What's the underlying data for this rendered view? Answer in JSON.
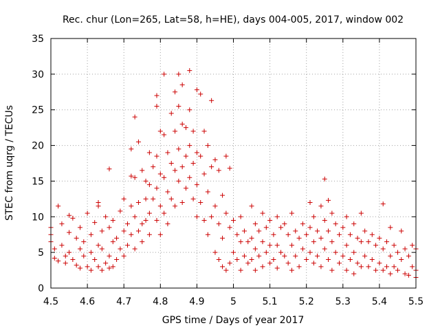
{
  "chart_data": {
    "type": "scatter",
    "title": "Rec. chur (Lon=265, Lat=58, h=HE), days 004-005, 2017, window 002",
    "xlabel": "GPS time / Days of year 2017",
    "ylabel": "STEC from uqrg / TECUs",
    "xlim": [
      4.5,
      5.5
    ],
    "ylim": [
      0,
      35
    ],
    "xticks": [
      4.5,
      4.6,
      4.7,
      4.8,
      4.9,
      5.0,
      5.1,
      5.2,
      5.3,
      5.4,
      5.5
    ],
    "xtick_labels": [
      "4.5",
      "4.6",
      "4.7",
      "4.8",
      "4.9",
      "5",
      "5.1",
      "5.2",
      "5.3",
      "5.4",
      "5.5"
    ],
    "yticks": [
      0,
      5,
      10,
      15,
      20,
      25,
      30,
      35
    ],
    "ytick_labels": [
      "0",
      "5",
      "10",
      "15",
      "20",
      "25",
      "30",
      "35"
    ],
    "grid": true,
    "marker": "plus",
    "color": "#cc0000",
    "series": [
      {
        "points": [
          [
            4.5,
            8.5
          ],
          [
            4.5,
            7.5
          ],
          [
            4.5,
            6.5
          ],
          [
            4.51,
            5.5
          ],
          [
            4.51,
            4.2
          ],
          [
            4.52,
            11.5
          ],
          [
            4.52,
            3.8
          ],
          [
            4.53,
            9.0
          ],
          [
            4.53,
            6.0
          ],
          [
            4.54,
            4.5
          ],
          [
            4.54,
            3.5
          ],
          [
            4.55,
            10.2
          ],
          [
            4.55,
            7.8
          ],
          [
            4.55,
            5.0
          ],
          [
            4.56,
            9.8
          ],
          [
            4.56,
            4.0
          ],
          [
            4.57,
            7.0
          ],
          [
            4.57,
            3.2
          ],
          [
            4.58,
            8.5
          ],
          [
            4.58,
            5.5
          ],
          [
            4.58,
            2.8
          ],
          [
            4.59,
            6.5
          ],
          [
            4.59,
            4.5
          ],
          [
            4.6,
            10.5
          ],
          [
            4.6,
            3.0
          ],
          [
            4.61,
            7.5
          ],
          [
            4.61,
            5.0
          ],
          [
            4.61,
            2.5
          ],
          [
            4.62,
            9.2
          ],
          [
            4.62,
            4.0
          ],
          [
            4.63,
            12.0
          ],
          [
            4.63,
            11.5
          ],
          [
            4.63,
            6.0
          ],
          [
            4.63,
            3.0
          ],
          [
            4.64,
            8.0
          ],
          [
            4.64,
            5.5
          ],
          [
            4.64,
            2.5
          ],
          [
            4.65,
            10.0
          ],
          [
            4.65,
            3.5
          ],
          [
            4.66,
            16.7
          ],
          [
            4.66,
            8.5
          ],
          [
            4.66,
            4.5
          ],
          [
            4.66,
            2.8
          ],
          [
            4.67,
            9.5
          ],
          [
            4.67,
            6.5
          ],
          [
            4.67,
            3.0
          ],
          [
            4.68,
            7.0
          ],
          [
            4.68,
            4.0
          ],
          [
            4.69,
            10.8
          ],
          [
            4.69,
            5.5
          ],
          [
            4.7,
            12.5
          ],
          [
            4.7,
            8.0
          ],
          [
            4.7,
            4.5
          ],
          [
            4.71,
            9.0
          ],
          [
            4.71,
            6.0
          ],
          [
            4.72,
            19.5
          ],
          [
            4.72,
            15.7
          ],
          [
            4.72,
            11.5
          ],
          [
            4.72,
            7.5
          ],
          [
            4.73,
            24.0
          ],
          [
            4.73,
            15.5
          ],
          [
            4.73,
            10.0
          ],
          [
            4.73,
            5.5
          ],
          [
            4.74,
            20.5
          ],
          [
            4.74,
            12.0
          ],
          [
            4.74,
            8.0
          ],
          [
            4.75,
            16.5
          ],
          [
            4.75,
            9.0
          ],
          [
            4.75,
            6.5
          ],
          [
            4.76,
            15.0
          ],
          [
            4.76,
            12.5
          ],
          [
            4.76,
            9.5
          ],
          [
            4.77,
            19.0
          ],
          [
            4.77,
            14.5
          ],
          [
            4.77,
            10.5
          ],
          [
            4.77,
            7.5
          ],
          [
            4.78,
            17.0
          ],
          [
            4.78,
            12.5
          ],
          [
            4.79,
            27.0
          ],
          [
            4.79,
            25.5
          ],
          [
            4.79,
            18.5
          ],
          [
            4.79,
            14.0
          ],
          [
            4.79,
            9.5
          ],
          [
            4.8,
            22.0
          ],
          [
            4.8,
            16.0
          ],
          [
            4.8,
            11.5
          ],
          [
            4.8,
            7.5
          ],
          [
            4.81,
            30.0
          ],
          [
            4.81,
            21.5
          ],
          [
            4.81,
            15.5
          ],
          [
            4.81,
            10.5
          ],
          [
            4.82,
            19.0
          ],
          [
            4.82,
            13.5
          ],
          [
            4.82,
            9.0
          ],
          [
            4.83,
            24.5
          ],
          [
            4.83,
            17.5
          ],
          [
            4.83,
            12.5
          ],
          [
            4.84,
            27.5
          ],
          [
            4.84,
            22.0
          ],
          [
            4.84,
            16.5
          ],
          [
            4.84,
            11.5
          ],
          [
            4.85,
            30.0
          ],
          [
            4.85,
            25.5
          ],
          [
            4.85,
            19.5
          ],
          [
            4.85,
            15.0
          ],
          [
            4.86,
            28.5
          ],
          [
            4.86,
            23.0
          ],
          [
            4.86,
            17.0
          ],
          [
            4.86,
            12.0
          ],
          [
            4.87,
            22.5
          ],
          [
            4.87,
            18.5
          ],
          [
            4.87,
            14.0
          ],
          [
            4.88,
            30.5
          ],
          [
            4.88,
            25.0
          ],
          [
            4.88,
            20.0
          ],
          [
            4.88,
            15.5
          ],
          [
            4.89,
            22.0
          ],
          [
            4.89,
            17.5
          ],
          [
            4.89,
            12.5
          ],
          [
            4.9,
            27.8
          ],
          [
            4.9,
            19.0
          ],
          [
            4.9,
            14.5
          ],
          [
            4.9,
            10.0
          ],
          [
            4.91,
            27.2
          ],
          [
            4.91,
            18.5
          ],
          [
            4.91,
            12.0
          ],
          [
            4.92,
            22.0
          ],
          [
            4.92,
            16.0
          ],
          [
            4.92,
            9.5
          ],
          [
            4.93,
            20.0
          ],
          [
            4.93,
            13.5
          ],
          [
            4.93,
            7.5
          ],
          [
            4.94,
            26.3
          ],
          [
            4.94,
            17.0
          ],
          [
            4.94,
            10.0
          ],
          [
            4.95,
            18.0
          ],
          [
            4.95,
            11.5
          ],
          [
            4.95,
            5.0
          ],
          [
            4.96,
            16.5
          ],
          [
            4.96,
            9.0
          ],
          [
            4.96,
            4.0
          ],
          [
            4.97,
            13.0
          ],
          [
            4.97,
            7.0
          ],
          [
            4.97,
            3.0
          ],
          [
            4.98,
            18.5
          ],
          [
            4.98,
            10.5
          ],
          [
            4.98,
            2.5
          ],
          [
            4.99,
            16.8
          ],
          [
            4.99,
            8.5
          ],
          [
            4.99,
            3.5
          ],
          [
            5.0,
            9.5
          ],
          [
            5.0,
            5.0
          ],
          [
            5.01,
            7.5
          ],
          [
            5.01,
            4.0
          ],
          [
            5.02,
            10.0
          ],
          [
            5.02,
            6.5
          ],
          [
            5.02,
            2.5
          ],
          [
            5.03,
            8.0
          ],
          [
            5.03,
            4.5
          ],
          [
            5.04,
            6.5
          ],
          [
            5.04,
            3.5
          ],
          [
            5.05,
            11.5
          ],
          [
            5.05,
            7.0
          ],
          [
            5.05,
            4.0
          ],
          [
            5.06,
            9.0
          ],
          [
            5.06,
            5.5
          ],
          [
            5.06,
            2.5
          ],
          [
            5.07,
            8.0
          ],
          [
            5.07,
            4.5
          ],
          [
            5.08,
            10.5
          ],
          [
            5.08,
            6.5
          ],
          [
            5.08,
            3.0
          ],
          [
            5.09,
            8.5
          ],
          [
            5.09,
            5.0
          ],
          [
            5.1,
            9.5
          ],
          [
            5.1,
            6.0
          ],
          [
            5.1,
            3.5
          ],
          [
            5.11,
            7.5
          ],
          [
            5.11,
            4.0
          ],
          [
            5.12,
            10.0
          ],
          [
            5.12,
            6.0
          ],
          [
            5.12,
            2.8
          ],
          [
            5.13,
            8.5
          ],
          [
            5.13,
            5.0
          ],
          [
            5.14,
            9.0
          ],
          [
            5.14,
            4.5
          ],
          [
            5.15,
            7.5
          ],
          [
            5.15,
            3.5
          ],
          [
            5.16,
            10.5
          ],
          [
            5.16,
            6.0
          ],
          [
            5.16,
            2.5
          ],
          [
            5.17,
            8.0
          ],
          [
            5.17,
            4.5
          ],
          [
            5.18,
            7.0
          ],
          [
            5.18,
            3.0
          ],
          [
            5.19,
            9.0
          ],
          [
            5.19,
            5.5
          ],
          [
            5.2,
            7.5
          ],
          [
            5.2,
            4.0
          ],
          [
            5.21,
            12.0
          ],
          [
            5.21,
            8.5
          ],
          [
            5.21,
            5.0
          ],
          [
            5.22,
            10.0
          ],
          [
            5.22,
            6.5
          ],
          [
            5.22,
            3.5
          ],
          [
            5.23,
            8.0
          ],
          [
            5.23,
            4.5
          ],
          [
            5.24,
            11.5
          ],
          [
            5.24,
            7.0
          ],
          [
            5.24,
            3.0
          ],
          [
            5.25,
            15.3
          ],
          [
            5.25,
            9.5
          ],
          [
            5.25,
            5.5
          ],
          [
            5.26,
            12.3
          ],
          [
            5.26,
            8.0
          ],
          [
            5.26,
            4.0
          ],
          [
            5.27,
            10.5
          ],
          [
            5.27,
            6.5
          ],
          [
            5.27,
            2.5
          ],
          [
            5.28,
            9.0
          ],
          [
            5.28,
            5.0
          ],
          [
            5.29,
            7.5
          ],
          [
            5.29,
            3.5
          ],
          [
            5.3,
            8.5
          ],
          [
            5.3,
            4.5
          ],
          [
            5.31,
            10.0
          ],
          [
            5.31,
            6.0
          ],
          [
            5.31,
            2.5
          ],
          [
            5.32,
            7.5
          ],
          [
            5.32,
            4.0
          ],
          [
            5.33,
            9.0
          ],
          [
            5.33,
            5.0
          ],
          [
            5.33,
            2.0
          ],
          [
            5.34,
            7.0
          ],
          [
            5.34,
            3.5
          ],
          [
            5.35,
            10.5
          ],
          [
            5.35,
            6.5
          ],
          [
            5.35,
            3.0
          ],
          [
            5.36,
            8.0
          ],
          [
            5.36,
            4.5
          ],
          [
            5.37,
            6.5
          ],
          [
            5.37,
            3.0
          ],
          [
            5.38,
            7.5
          ],
          [
            5.38,
            4.0
          ],
          [
            5.39,
            6.0
          ],
          [
            5.39,
            2.5
          ],
          [
            5.4,
            7.0
          ],
          [
            5.4,
            3.5
          ],
          [
            5.41,
            11.8
          ],
          [
            5.41,
            5.5
          ],
          [
            5.41,
            2.5
          ],
          [
            5.42,
            6.5
          ],
          [
            5.42,
            3.0
          ],
          [
            5.43,
            8.5
          ],
          [
            5.43,
            4.5
          ],
          [
            5.43,
            2.0
          ],
          [
            5.44,
            6.0
          ],
          [
            5.44,
            3.0
          ],
          [
            5.45,
            5.0
          ],
          [
            5.45,
            2.5
          ],
          [
            5.46,
            8.0
          ],
          [
            5.46,
            4.0
          ],
          [
            5.47,
            5.5
          ],
          [
            5.47,
            2.0
          ],
          [
            5.48,
            4.5
          ],
          [
            5.48,
            1.8
          ],
          [
            5.49,
            6.0
          ],
          [
            5.49,
            3.0
          ],
          [
            5.5,
            5.5
          ],
          [
            5.5,
            2.5
          ],
          [
            5.5,
            1.5
          ]
        ]
      }
    ]
  }
}
